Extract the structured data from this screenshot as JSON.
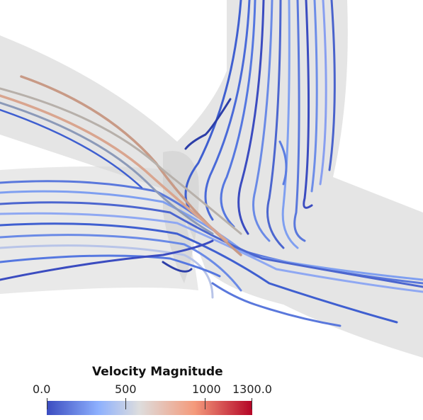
{
  "colorbar": {
    "title": "Velocity Magnitude",
    "ticks": [
      "0.0",
      "500",
      "1000",
      "1300.0"
    ],
    "range": [
      0,
      1300
    ],
    "colormap": "coolwarm",
    "colors": {
      "low": "#3b4cc0",
      "mid": "#dddddd",
      "high": "#b40426"
    }
  },
  "visualization": {
    "type": "3d-streamlines",
    "vessel_color": "#d9d9d9"
  }
}
